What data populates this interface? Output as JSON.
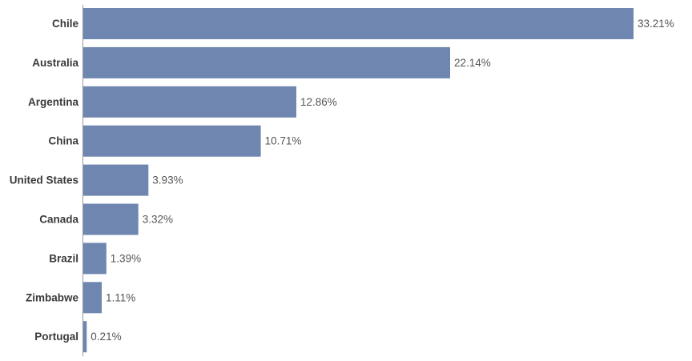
{
  "chart_data": {
    "type": "bar",
    "orientation": "horizontal",
    "title": "",
    "xlabel": "",
    "ylabel": "",
    "categories": [
      "Chile",
      "Australia",
      "Argentina",
      "China",
      "United States",
      "Canada",
      "Brazil",
      "Zimbabwe",
      "Portugal"
    ],
    "values": [
      33.21,
      22.14,
      12.86,
      10.71,
      3.93,
      3.32,
      1.39,
      1.11,
      0.21
    ],
    "value_labels": [
      "33.21%",
      "22.14%",
      "12.86%",
      "10.71%",
      "3.93%",
      "3.32%",
      "1.39%",
      "1.11%",
      "0.21%"
    ],
    "xlim": [
      0,
      33.21
    ],
    "grid": false,
    "legend": "none",
    "bar_color": "#6f87b0"
  }
}
